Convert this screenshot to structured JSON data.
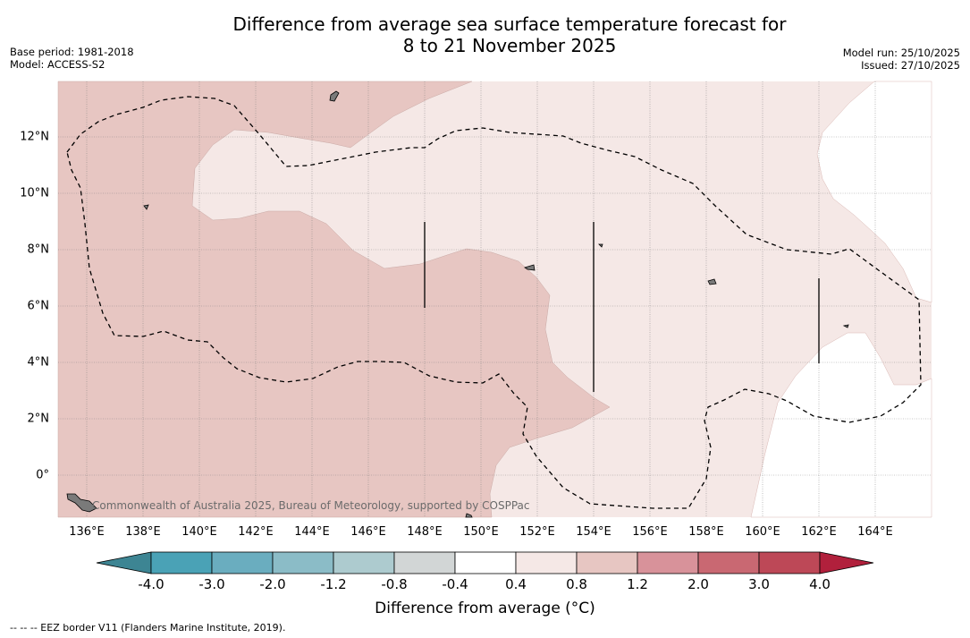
{
  "title": {
    "line1": "Difference from average sea surface temperature forecast for",
    "line2": "8 to 21 November 2025"
  },
  "meta": {
    "base_period": "Base period: 1981-2018",
    "model": "Model: ACCESS-S2",
    "model_run": "Model run: 25/10/2025",
    "issued": "Issued: 27/10/2025"
  },
  "map": {
    "lon_range": [
      135,
      166
    ],
    "lat_range": [
      -1.5,
      14
    ],
    "x_ticks": [
      "136°E",
      "138°E",
      "140°E",
      "142°E",
      "144°E",
      "146°E",
      "148°E",
      "150°E",
      "152°E",
      "154°E",
      "156°E",
      "158°E",
      "160°E",
      "162°E",
      "164°E"
    ],
    "y_ticks": [
      "12°N",
      "10°N",
      "8°N",
      "6°N",
      "4°N",
      "2°N",
      "0°"
    ],
    "credit": "Commonwealth of Australia 2025, Bureau of Meteorology, supported by COSPPac",
    "colors": {
      "anom_0_8_to_1_2": "#e7c6c2",
      "anom_0_4_to_0_8": "#f5e8e6",
      "anom_m0_4_to_0_4": "#ffffff",
      "land": "#7a7a7a",
      "eez": "#000000"
    }
  },
  "colorbar": {
    "labels": [
      "-4.0",
      "-3.0",
      "-2.0",
      "-1.2",
      "-0.8",
      "-0.4",
      "0.4",
      "0.8",
      "1.2",
      "2.0",
      "3.0",
      "4.0"
    ],
    "colors": [
      "#4aa2b6",
      "#6aadbf",
      "#8bbcc7",
      "#adcbcf",
      "#d2d6d6",
      "#ffffff",
      "#f5e8e6",
      "#e7c6c2",
      "#d8929a",
      "#c96872",
      "#bd4857"
    ],
    "under_color": "#3d8593",
    "over_color": "#b1203c",
    "title": "Difference from average (°C)"
  },
  "footnote": "--  --  -- EEZ border V11 (Flanders Marine Institute, 2019)."
}
